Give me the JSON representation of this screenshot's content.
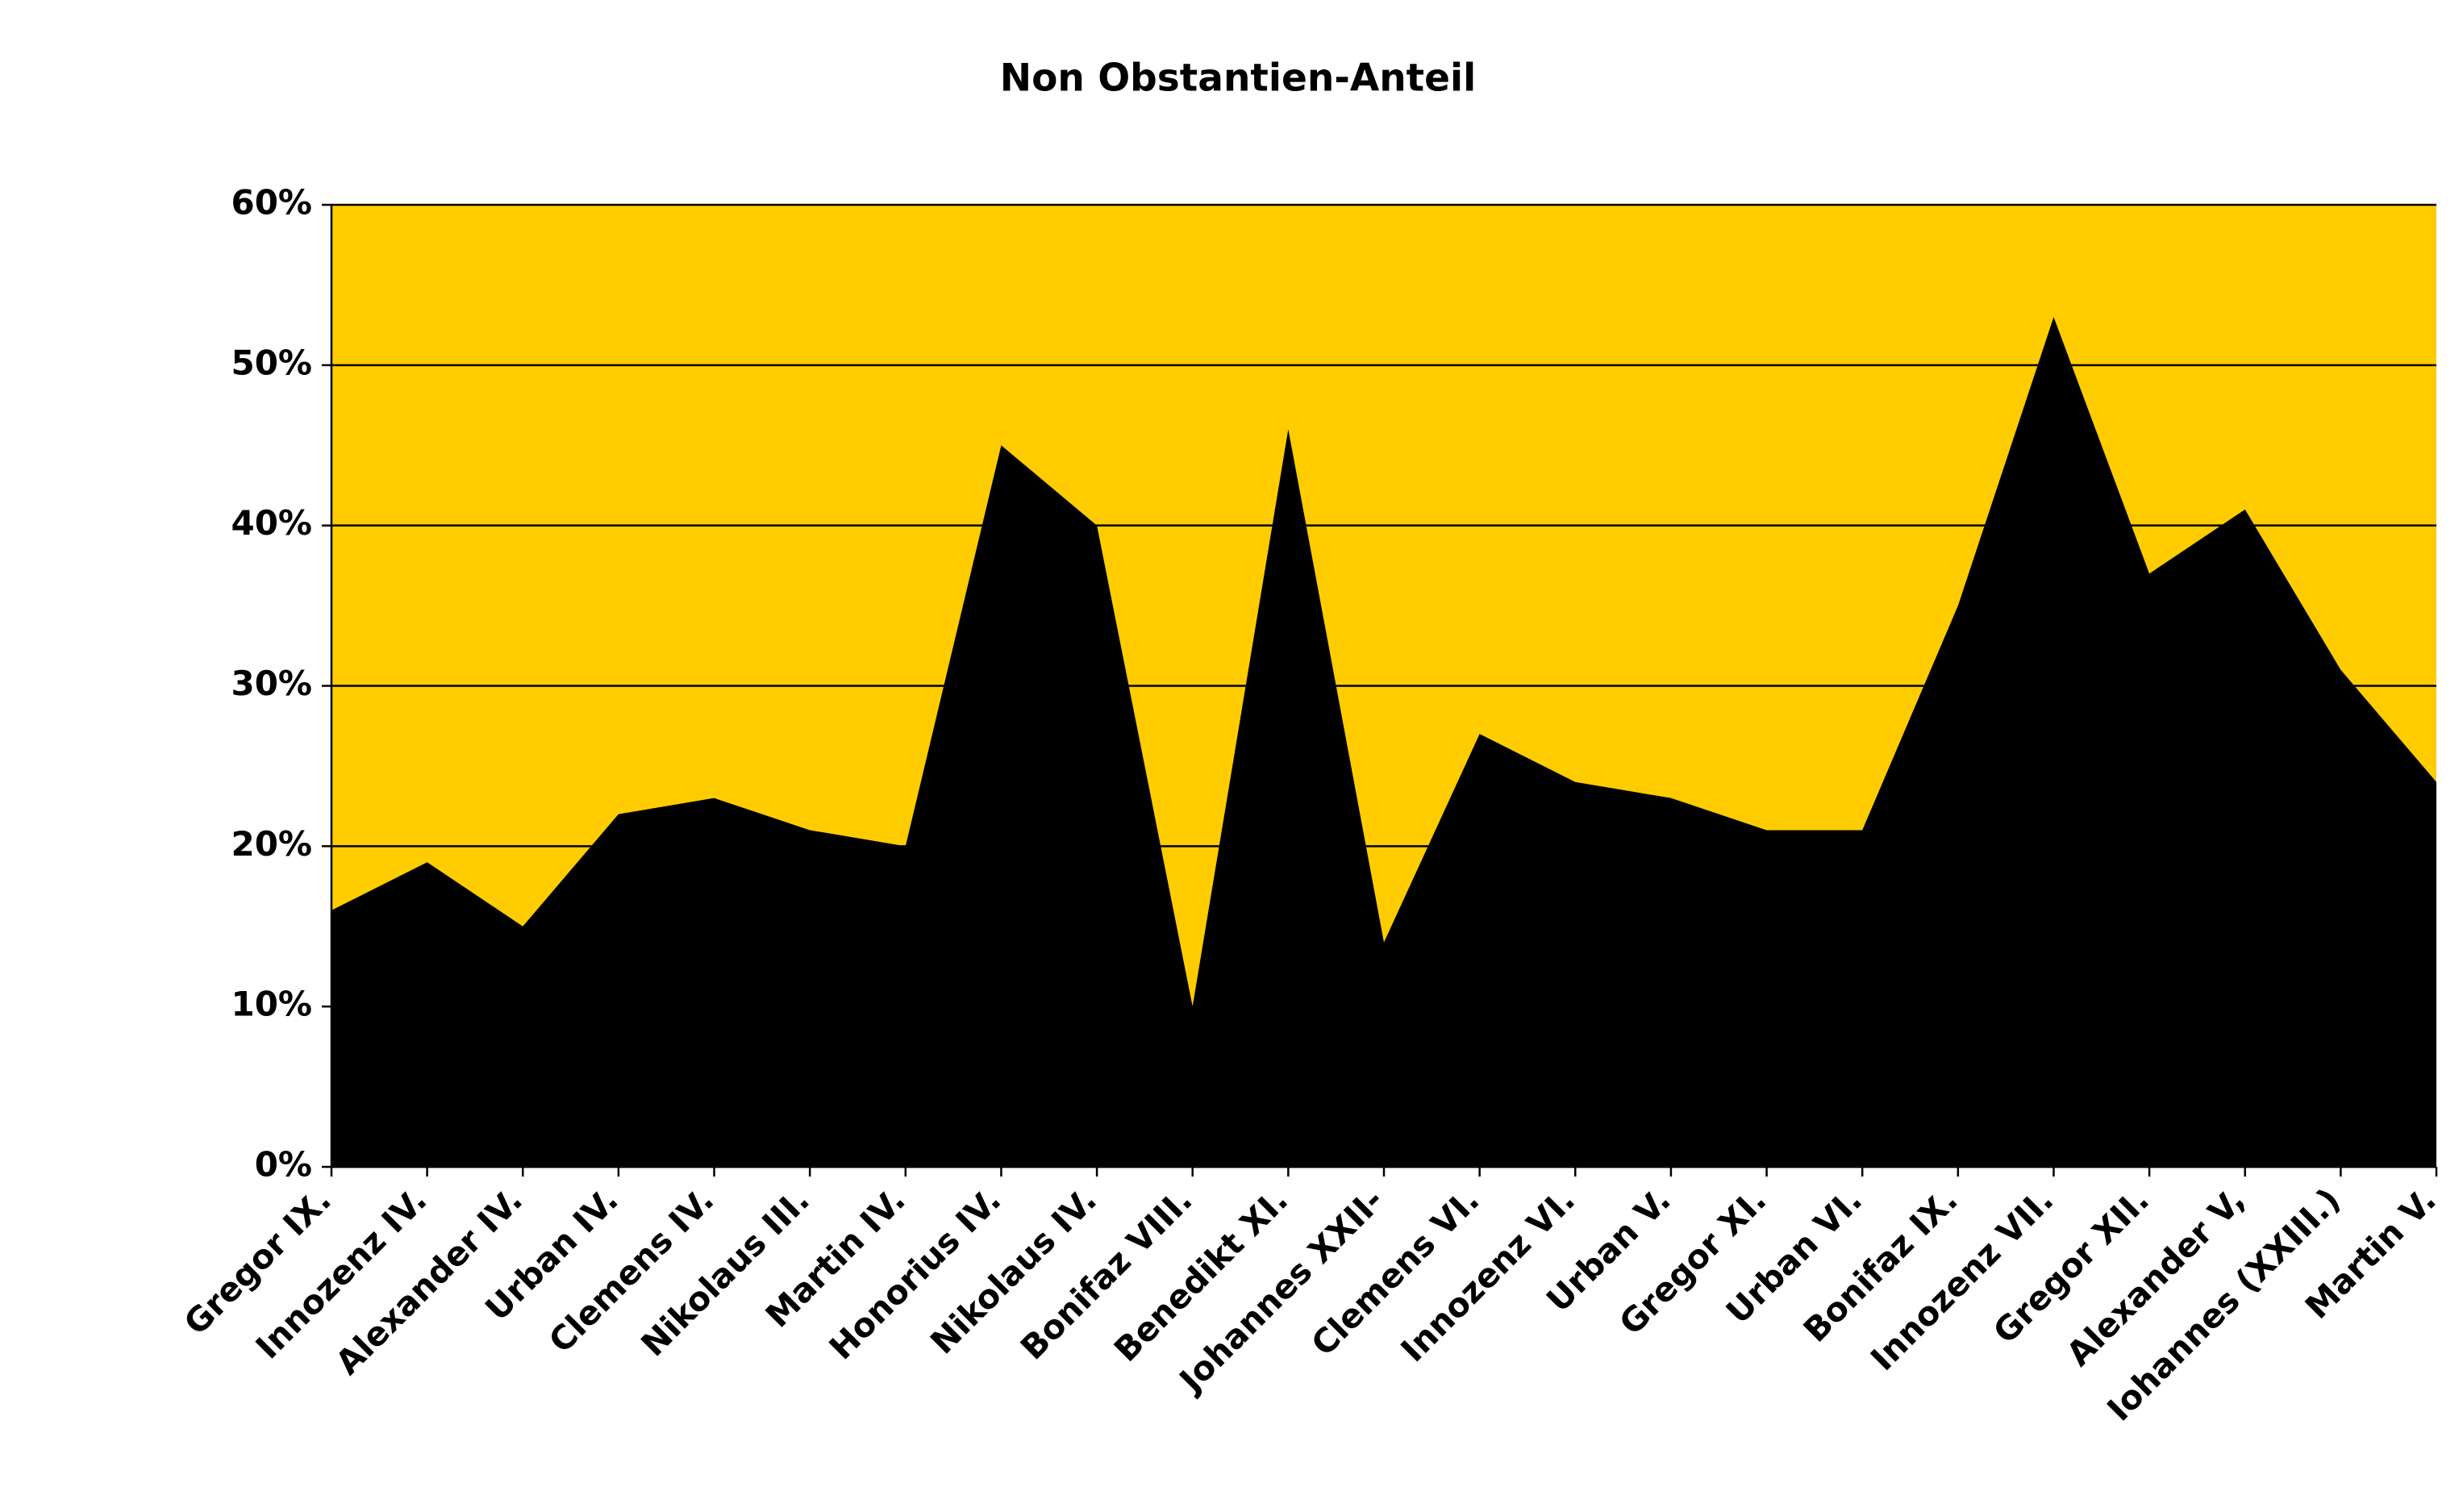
{
  "chart_data": {
    "type": "area",
    "title": "Non Obstantien-Anteil",
    "categories": [
      "Gregor IX.",
      "Innozenz IV.",
      "Alexander IV.",
      "Urban IV.",
      "Clemens IV.",
      "Nikolaus III.",
      "Martin IV.",
      "Honorius IV.",
      "Nikolaus IV.",
      "Bonifaz VIII.",
      "Benedikt XI.",
      "Johannes XXII-",
      "Clemens VI.",
      "Innozenz VI.",
      "Urban V.",
      "Gregor XI.",
      "Urban VI.",
      "Bonifaz IX.",
      "Innozenz VII.",
      "Gregor XII.",
      "Alexander V,",
      "Iohannes (XXIII.)",
      "Martin V."
    ],
    "values": [
      16,
      19,
      15,
      22,
      23,
      21,
      20,
      45,
      40,
      10,
      46,
      14,
      27,
      24,
      23,
      21,
      21,
      35,
      53,
      37,
      41,
      31,
      24
    ],
    "color": "#000000",
    "background": "#ffcc00",
    "ylim": [
      0,
      60
    ],
    "yticks": [
      {
        "value": 0,
        "label": "0%"
      },
      {
        "value": 10,
        "label": "10%"
      },
      {
        "value": 20,
        "label": "20%"
      },
      {
        "value": 30,
        "label": "30%"
      },
      {
        "value": 40,
        "label": "40%"
      },
      {
        "value": 50,
        "label": "50%"
      },
      {
        "value": 60,
        "label": "60%"
      }
    ],
    "grid": true
  }
}
